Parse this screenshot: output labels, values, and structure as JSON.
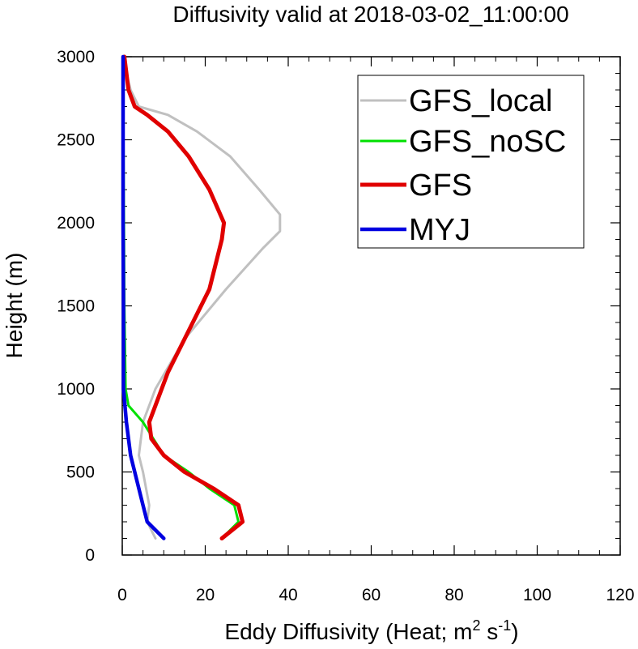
{
  "chart_data": {
    "type": "line",
    "title": "Diffusivity valid at 2018-03-02_11:00:00",
    "xlabel": "Eddy Diffusivity (Heat; m",
    "xlabel_sup1": "2",
    "xlabel_mid": " s",
    "xlabel_sup2": "-1",
    "xlabel_end": ")",
    "ylabel": "Height (m)",
    "xlim": [
      0,
      120
    ],
    "ylim": [
      0,
      3000
    ],
    "x_ticks": [
      "0",
      "20",
      "40",
      "60",
      "80",
      "100",
      "120"
    ],
    "x_tick_values": [
      0,
      20,
      40,
      60,
      80,
      100,
      120
    ],
    "y_ticks": [
      "0",
      "500",
      "1000",
      "1500",
      "2000",
      "2500",
      "3000"
    ],
    "y_tick_values": [
      0,
      500,
      1000,
      1500,
      2000,
      2500,
      3000
    ],
    "legend_position": "top-right",
    "series": [
      {
        "name": "GFS_local",
        "color": "#c0c0c0",
        "points": [
          [
            8,
            100
          ],
          [
            6,
            200
          ],
          [
            6.5,
            300
          ],
          [
            5,
            500
          ],
          [
            4,
            600
          ],
          [
            5,
            800
          ],
          [
            8,
            1000
          ],
          [
            15,
            1300
          ],
          [
            25,
            1600
          ],
          [
            34,
            1850
          ],
          [
            38,
            1950
          ],
          [
            38,
            2050
          ],
          [
            33,
            2200
          ],
          [
            26,
            2400
          ],
          [
            18,
            2550
          ],
          [
            11,
            2650
          ],
          [
            4,
            2700
          ],
          [
            2,
            2800
          ],
          [
            1,
            2900
          ],
          [
            0.5,
            3000
          ]
        ]
      },
      {
        "name": "GFS_noSC",
        "color": "#00e000",
        "points": [
          [
            24,
            100
          ],
          [
            28,
            200
          ],
          [
            27,
            300
          ],
          [
            21,
            400
          ],
          [
            16,
            500
          ],
          [
            10,
            600
          ],
          [
            5,
            800
          ],
          [
            1.5,
            900
          ],
          [
            0.8,
            1000
          ],
          [
            0.5,
            1500
          ],
          [
            0.4,
            2000
          ],
          [
            0.3,
            2500
          ],
          [
            0.3,
            3000
          ]
        ]
      },
      {
        "name": "GFS",
        "color": "#e00000",
        "points": [
          [
            24,
            100
          ],
          [
            29,
            200
          ],
          [
            28,
            300
          ],
          [
            22,
            400
          ],
          [
            15,
            500
          ],
          [
            10,
            600
          ],
          [
            7,
            700
          ],
          [
            6.5,
            800
          ],
          [
            8,
            900
          ],
          [
            11,
            1100
          ],
          [
            15,
            1300
          ],
          [
            21,
            1600
          ],
          [
            24,
            1900
          ],
          [
            24.5,
            2000
          ],
          [
            21,
            2200
          ],
          [
            16,
            2400
          ],
          [
            11,
            2550
          ],
          [
            6,
            2650
          ],
          [
            3,
            2700
          ],
          [
            1.5,
            2800
          ],
          [
            0.5,
            3000
          ]
        ]
      },
      {
        "name": "MYJ",
        "color": "#0000e0",
        "points": [
          [
            10,
            100
          ],
          [
            6,
            200
          ],
          [
            5,
            300
          ],
          [
            3,
            500
          ],
          [
            2,
            600
          ],
          [
            1,
            800
          ],
          [
            0.3,
            1000
          ],
          [
            0.3,
            1500
          ],
          [
            0.2,
            2000
          ],
          [
            0.2,
            2500
          ],
          [
            0.2,
            3000
          ]
        ]
      }
    ]
  }
}
